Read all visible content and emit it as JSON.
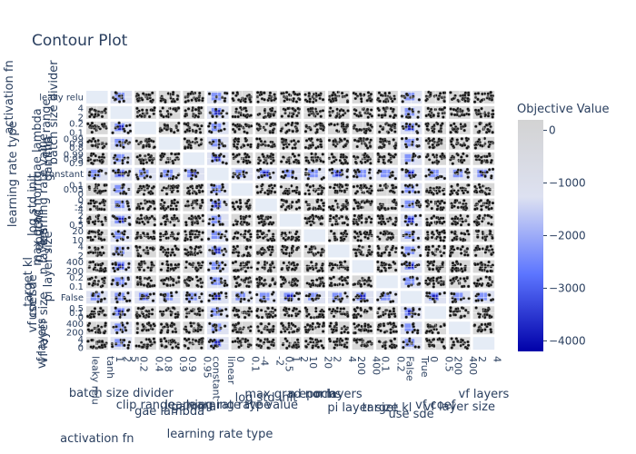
{
  "chart_data": {
    "type": "heatmap",
    "title": "Contour Plot",
    "subplot_matrix": "contour",
    "params": [
      "activation fn",
      "batch size divider",
      "clip range",
      "gae lambda",
      "gamma",
      "learning rate type",
      "learning rate value",
      "log std init",
      "max grad norm",
      "n epochs",
      "n layers",
      "pi layer size",
      "target kl",
      "use sde",
      "vf coef",
      "vf layer size",
      "vf layers"
    ],
    "x_tick_labels": [
      [
        "leaky relu",
        "tanh"
      ],
      [
        "1",
        "2",
        "5"
      ],
      [
        "0.2",
        "0.4"
      ],
      [
        "0.8",
        "0.9"
      ],
      [
        "0.9",
        "0.95"
      ],
      [
        "constant",
        "linear"
      ],
      [
        "0",
        "0.1"
      ],
      [
        "-4",
        "-2"
      ],
      [
        "0.5",
        "1",
        "2"
      ],
      [
        "10",
        "20"
      ],
      [
        "2",
        "4"
      ],
      [
        "200",
        "400"
      ],
      [
        "0.1",
        "0.2"
      ],
      [
        "False",
        "True"
      ],
      [
        "0",
        "0.5"
      ],
      [
        "200",
        "400"
      ],
      [
        "2",
        "4"
      ]
    ],
    "y_tick_labels": [
      [
        "leaky relu"
      ],
      [
        "4",
        "2"
      ],
      [
        "0.2",
        "0.1"
      ],
      [
        "0.99",
        "0.9",
        "0.8"
      ],
      [
        "0.99",
        "0.95",
        "0.9"
      ],
      [
        "constant"
      ],
      [
        "0.1",
        "0.05",
        "0"
      ],
      [
        "0",
        "-2",
        "-4"
      ],
      [
        "2",
        "1",
        "0.5"
      ],
      [
        "20",
        "10"
      ],
      [
        "4",
        "2"
      ],
      [
        "400",
        "200"
      ],
      [
        "0.2",
        "0.1"
      ],
      [
        "False"
      ],
      [
        "0.5",
        "0.1",
        "0"
      ],
      [
        "400",
        "200"
      ],
      [
        "4",
        "2",
        "0"
      ]
    ],
    "colorbar": {
      "title": "Objective Value",
      "range": [
        -4200,
        200
      ],
      "ticks": [
        0,
        -1000,
        -2000,
        -3000,
        -4000
      ],
      "tick_labels": [
        "0",
        "−1000",
        "−2000",
        "−3000",
        "−4000"
      ],
      "colorscale": [
        "#0000a8",
        "#5c75ff",
        "#dde1f1",
        "#d3d3d3"
      ]
    },
    "legend": "none",
    "grid": true
  }
}
